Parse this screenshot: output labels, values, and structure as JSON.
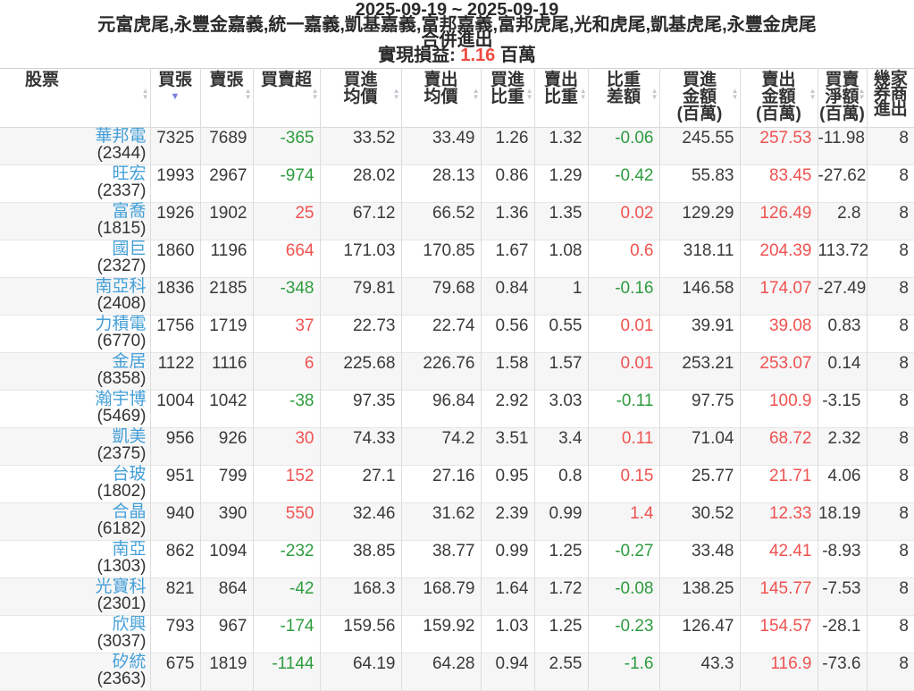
{
  "header": {
    "date_range": "2025-09-19 ~ 2025-09-19",
    "brokers": "元富虎尾,永豐金嘉義,統一嘉義,凱基嘉義,富邦嘉義,富邦虎尾,光和虎尾,凱基虎尾,永豐金虎尾",
    "merge_label": "合併進出",
    "realized_pl_label": "實現損益:",
    "realized_pl_value": "1.16",
    "realized_pl_unit": "百萬"
  },
  "colors": {
    "positive_red": "#ef5350",
    "negative_green": "#2e9c3e",
    "stock_link_blue": "#46a0d8",
    "active_sort_arrow": "#7a80dc",
    "row_stripe": "#f6f6f7"
  },
  "table": {
    "columns": [
      {
        "id": "stock",
        "label": "股票",
        "sortable": true,
        "color": "dark"
      },
      {
        "id": "buy-lots",
        "label": "買張",
        "sortable": true,
        "sorted": "desc",
        "color": "dark"
      },
      {
        "id": "sell-lots",
        "label": "賣張",
        "sortable": true,
        "color": "dark"
      },
      {
        "id": "net-lots",
        "label": "買賣超",
        "sortable": true,
        "color": "sign"
      },
      {
        "id": "buy-avg-price",
        "label": "買進均價",
        "lines": [
          "買進",
          "均價"
        ],
        "sortable": true,
        "color": "dark"
      },
      {
        "id": "sell-avg-price",
        "label": "賣出均價",
        "lines": [
          "賣出",
          "均價"
        ],
        "sortable": true,
        "color": "dark"
      },
      {
        "id": "buy-weight",
        "label": "買進比重",
        "lines": [
          "買進",
          "比重"
        ],
        "sortable": true,
        "color": "dark"
      },
      {
        "id": "sell-weight",
        "label": "賣出比重",
        "lines": [
          "賣出",
          "比重"
        ],
        "sortable": true,
        "color": "dark"
      },
      {
        "id": "weight-diff",
        "label": "比重差額",
        "lines": [
          "比重",
          "差額"
        ],
        "sortable": true,
        "color": "sign"
      },
      {
        "id": "buy-amount",
        "label": "買進金額(百萬)",
        "lines": [
          "買進",
          "金額",
          "(百萬)"
        ],
        "sortable": true,
        "color": "dark"
      },
      {
        "id": "sell-amount",
        "label": "賣出金額(百萬)",
        "lines": [
          "賣出",
          "金額",
          "(百萬)"
        ],
        "sortable": true,
        "color": "red"
      },
      {
        "id": "net-amount",
        "label": "買賣淨額(百萬)",
        "lines": [
          "買賣",
          "淨額",
          "(百萬)"
        ],
        "sortable": true,
        "color": "dark"
      },
      {
        "id": "broker-count",
        "label": "幾家券商進出",
        "lines": [
          "幾家",
          "券商",
          "進出"
        ],
        "sortable": false,
        "color": "dark"
      }
    ],
    "rows": [
      {
        "name": "華邦電",
        "code": "(2344)",
        "values": [
          "7325",
          "7689",
          "-365",
          "33.52",
          "33.49",
          "1.26",
          "1.32",
          "-0.06",
          "245.55",
          "257.53",
          "-11.98",
          "8"
        ]
      },
      {
        "name": "旺宏",
        "code": "(2337)",
        "values": [
          "1993",
          "2967",
          "-974",
          "28.02",
          "28.13",
          "0.86",
          "1.29",
          "-0.42",
          "55.83",
          "83.45",
          "-27.62",
          "8"
        ]
      },
      {
        "name": "富喬",
        "code": "(1815)",
        "values": [
          "1926",
          "1902",
          "25",
          "67.12",
          "66.52",
          "1.36",
          "1.35",
          "0.02",
          "129.29",
          "126.49",
          "2.8",
          "8"
        ]
      },
      {
        "name": "國巨",
        "code": "(2327)",
        "values": [
          "1860",
          "1196",
          "664",
          "171.03",
          "170.85",
          "1.67",
          "1.08",
          "0.6",
          "318.11",
          "204.39",
          "113.72",
          "8"
        ]
      },
      {
        "name": "南亞科",
        "code": "(2408)",
        "values": [
          "1836",
          "2185",
          "-348",
          "79.81",
          "79.68",
          "0.84",
          "1",
          "-0.16",
          "146.58",
          "174.07",
          "-27.49",
          "8"
        ]
      },
      {
        "name": "力積電",
        "code": "(6770)",
        "values": [
          "1756",
          "1719",
          "37",
          "22.73",
          "22.74",
          "0.56",
          "0.55",
          "0.01",
          "39.91",
          "39.08",
          "0.83",
          "8"
        ]
      },
      {
        "name": "金居",
        "code": "(8358)",
        "values": [
          "1122",
          "1116",
          "6",
          "225.68",
          "226.76",
          "1.58",
          "1.57",
          "0.01",
          "253.21",
          "253.07",
          "0.14",
          "8"
        ]
      },
      {
        "name": "瀚宇博",
        "code": "(5469)",
        "values": [
          "1004",
          "1042",
          "-38",
          "97.35",
          "96.84",
          "2.92",
          "3.03",
          "-0.11",
          "97.75",
          "100.9",
          "-3.15",
          "8"
        ]
      },
      {
        "name": "凱美",
        "code": "(2375)",
        "values": [
          "956",
          "926",
          "30",
          "74.33",
          "74.2",
          "3.51",
          "3.4",
          "0.11",
          "71.04",
          "68.72",
          "2.32",
          "8"
        ]
      },
      {
        "name": "台玻",
        "code": "(1802)",
        "values": [
          "951",
          "799",
          "152",
          "27.1",
          "27.16",
          "0.95",
          "0.8",
          "0.15",
          "25.77",
          "21.71",
          "4.06",
          "8"
        ]
      },
      {
        "name": "合晶",
        "code": "(6182)",
        "values": [
          "940",
          "390",
          "550",
          "32.46",
          "31.62",
          "2.39",
          "0.99",
          "1.4",
          "30.52",
          "12.33",
          "18.19",
          "8"
        ]
      },
      {
        "name": "南亞",
        "code": "(1303)",
        "values": [
          "862",
          "1094",
          "-232",
          "38.85",
          "38.77",
          "0.99",
          "1.25",
          "-0.27",
          "33.48",
          "42.41",
          "-8.93",
          "8"
        ]
      },
      {
        "name": "光寶科",
        "code": "(2301)",
        "values": [
          "821",
          "864",
          "-42",
          "168.3",
          "168.79",
          "1.64",
          "1.72",
          "-0.08",
          "138.25",
          "145.77",
          "-7.53",
          "8"
        ]
      },
      {
        "name": "欣興",
        "code": "(3037)",
        "values": [
          "793",
          "967",
          "-174",
          "159.56",
          "159.92",
          "1.03",
          "1.25",
          "-0.23",
          "126.47",
          "154.57",
          "-28.1",
          "8"
        ]
      },
      {
        "name": "矽統",
        "code": "(2363)",
        "values": [
          "675",
          "1819",
          "-1144",
          "64.19",
          "64.28",
          "0.94",
          "2.55",
          "-1.6",
          "43.3",
          "116.9",
          "-73.6",
          "8"
        ]
      }
    ]
  }
}
